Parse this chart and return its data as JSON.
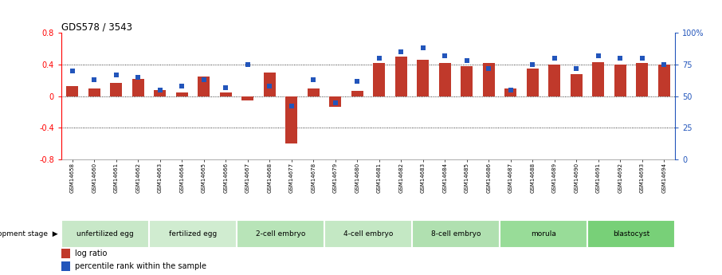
{
  "title": "GDS578 / 3543",
  "samples": [
    "GSM14658",
    "GSM14660",
    "GSM14661",
    "GSM14662",
    "GSM14663",
    "GSM14664",
    "GSM14665",
    "GSM14666",
    "GSM14667",
    "GSM14668",
    "GSM14677",
    "GSM14678",
    "GSM14679",
    "GSM14680",
    "GSM14681",
    "GSM14682",
    "GSM14683",
    "GSM14684",
    "GSM14685",
    "GSM14686",
    "GSM14687",
    "GSM14688",
    "GSM14689",
    "GSM14690",
    "GSM14691",
    "GSM14692",
    "GSM14693",
    "GSM14694"
  ],
  "log_ratio": [
    0.13,
    0.1,
    0.17,
    0.22,
    0.08,
    0.05,
    0.25,
    0.05,
    -0.05,
    0.3,
    -0.6,
    0.1,
    -0.13,
    0.07,
    0.42,
    0.5,
    0.46,
    0.42,
    0.38,
    0.42,
    0.1,
    0.35,
    0.4,
    0.28,
    0.43,
    0.4,
    0.42,
    0.4
  ],
  "percentile_rank": [
    70,
    63,
    67,
    65,
    55,
    58,
    63,
    57,
    75,
    58,
    42,
    63,
    45,
    62,
    80,
    85,
    88,
    82,
    78,
    72,
    55,
    75,
    80,
    72,
    82,
    80,
    80,
    75
  ],
  "stages": [
    {
      "label": "unfertilized egg",
      "start": 0,
      "end": 4,
      "color": "#c8e8c8"
    },
    {
      "label": "fertilized egg",
      "start": 4,
      "end": 8,
      "color": "#d0ecd0"
    },
    {
      "label": "2-cell embryo",
      "start": 8,
      "end": 12,
      "color": "#b8e4b8"
    },
    {
      "label": "4-cell embryo",
      "start": 12,
      "end": 16,
      "color": "#c4e8c4"
    },
    {
      "label": "8-cell embryo",
      "start": 16,
      "end": 20,
      "color": "#b0e0b0"
    },
    {
      "label": "morula",
      "start": 20,
      "end": 24,
      "color": "#98dc98"
    },
    {
      "label": "blastocyst",
      "start": 24,
      "end": 28,
      "color": "#78d078"
    }
  ],
  "bar_color": "#c0392b",
  "dot_color": "#2255bb",
  "ylim_left": [
    -0.8,
    0.8
  ],
  "ylim_right": [
    0,
    100
  ],
  "legend_items": [
    "log ratio",
    "percentile rank within the sample"
  ]
}
